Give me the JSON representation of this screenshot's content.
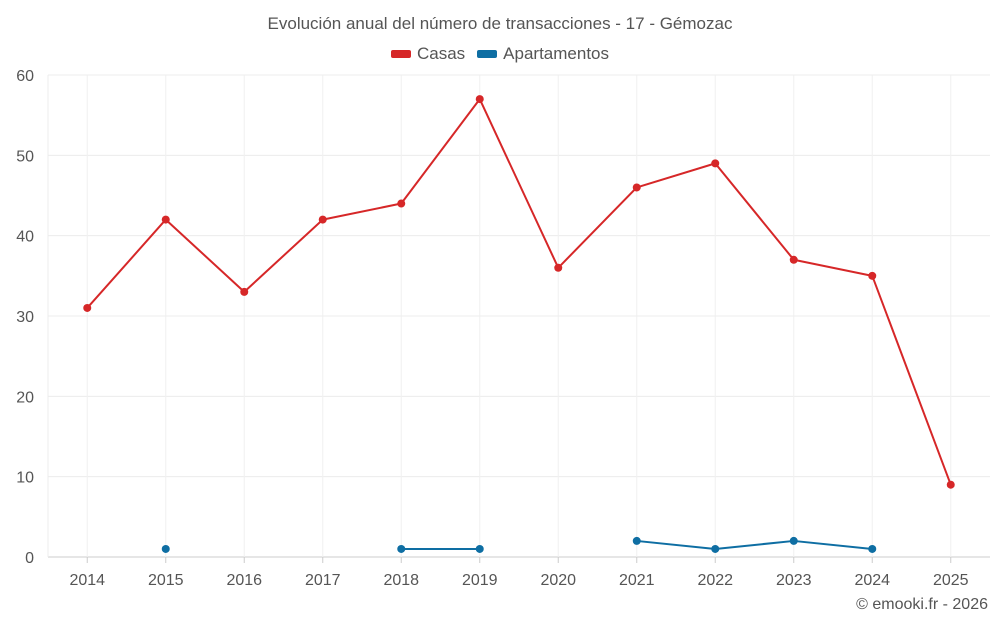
{
  "chart_data": {
    "type": "line",
    "title": "Evolución anual del número de transacciones - 17 - Gémozac",
    "xlabel": "",
    "ylabel": "",
    "categories": [
      "2014",
      "2015",
      "2016",
      "2017",
      "2018",
      "2019",
      "2020",
      "2021",
      "2022",
      "2023",
      "2024",
      "2025"
    ],
    "ylim": [
      0,
      60
    ],
    "yticks": [
      0,
      10,
      20,
      30,
      40,
      50,
      60
    ],
    "grid": true,
    "legend_position": "top-center",
    "series": [
      {
        "name": "Casas",
        "color": "#d62728",
        "values": [
          31,
          42,
          33,
          42,
          44,
          57,
          36,
          46,
          49,
          37,
          35,
          9
        ]
      },
      {
        "name": "Apartamentos",
        "color": "#0e6ea3",
        "values": [
          null,
          1,
          null,
          null,
          1,
          1,
          null,
          2,
          1,
          2,
          1,
          null
        ]
      }
    ]
  },
  "footer": {
    "credit": "© emooki.fr - 2026"
  }
}
